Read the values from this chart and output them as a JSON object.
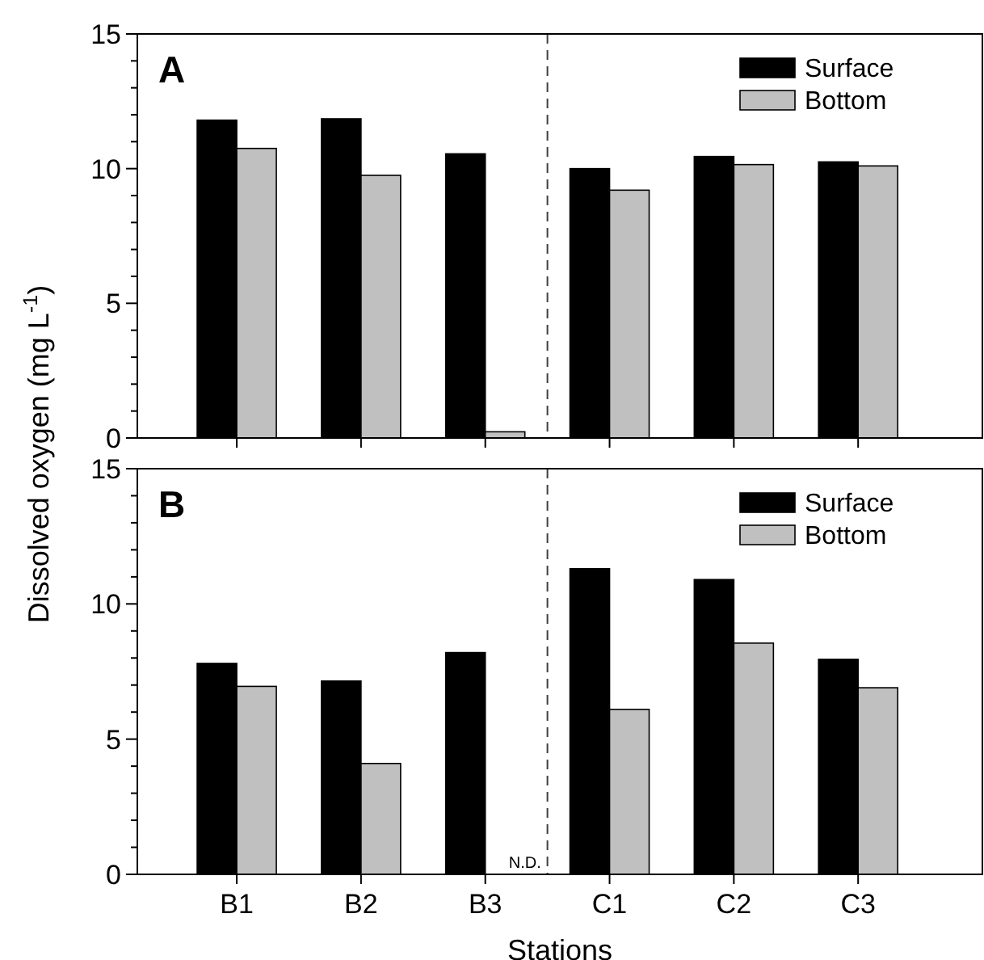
{
  "chart_data": [
    {
      "type": "bar",
      "title": "A",
      "ylabel": "Dissolved oxygen  (mg L$^{-1}$)",
      "categories": [
        null,
        null,
        null,
        null,
        null,
        null
      ],
      "ylim": [
        0,
        15
      ],
      "yticks": [
        0,
        {
          "value": 1,
          "label": null
        },
        {
          "value": 2,
          "label": null
        },
        {
          "value": 3,
          "label": null
        },
        {
          "value": 4,
          "label": null
        },
        5,
        {
          "value": 6,
          "label": null
        },
        {
          "value": 7,
          "label": null
        },
        {
          "value": 8,
          "label": null
        },
        {
          "value": 9,
          "label": null
        },
        10,
        {
          "value": 11,
          "label": null
        },
        {
          "value": 12,
          "label": null
        },
        {
          "value": 13,
          "label": null
        },
        {
          "value": 14,
          "label": null
        },
        15
      ],
      "tick_labels": "y",
      "legend": "top right",
      "grid": false,
      "series": [
        {
          "name": "Surface",
          "color": "#000000",
          "values": [
            11.8,
            11.85,
            10.55,
            10.0,
            10.45,
            10.25
          ]
        },
        {
          "name": "Bottom",
          "color": "#c0c0c0",
          "values": [
            10.75,
            9.75,
            0.23,
            9.2,
            10.15,
            10.1
          ]
        }
      ]
    },
    {
      "type": "bar",
      "title": "B",
      "xlabel": "Stations",
      "categories": [
        "B1",
        "B2",
        "B3",
        "C1",
        "C2",
        "C3"
      ],
      "ylim": [
        0,
        15
      ],
      "yticks": [
        0,
        {
          "value": 1,
          "label": null
        },
        {
          "value": 2,
          "label": null
        },
        {
          "value": 3,
          "label": null
        },
        {
          "value": 4,
          "label": null
        },
        5,
        {
          "value": 6,
          "label": null
        },
        {
          "value": 7,
          "label": null
        },
        {
          "value": 8,
          "label": null
        },
        {
          "value": 9,
          "label": null
        },
        10,
        {
          "value": 11,
          "label": null
        },
        {
          "value": 12,
          "label": null
        },
        {
          "value": 13,
          "label": null
        },
        {
          "value": 14,
          "label": null
        },
        15
      ],
      "legend": "top right",
      "grid": false,
      "series": [
        {
          "name": "Surface",
          "color": "#000000",
          "values": [
            7.8,
            7.15,
            8.2,
            11.3,
            10.9,
            7.95
          ]
        },
        {
          "name": "Bottom",
          "color": "#c0c0c0",
          "values": [
            6.95,
            4.1,
            null,
            6.1,
            8.55,
            6.9
          ]
        }
      ],
      "annotations": [
        {
          "text": "N.D.",
          "x": "B3",
          "y": 0
        }
      ]
    }
  ]
}
